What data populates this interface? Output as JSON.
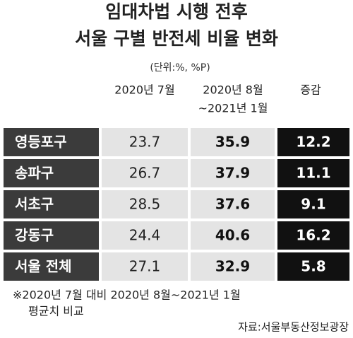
{
  "header": {
    "title": [
      "임대차법 시행 전후",
      "서울 구별 반전세 비율 변화"
    ],
    "unit": "(단위:%, %P)"
  },
  "table": {
    "columns": [
      [
        "2020년 7월"
      ],
      [
        "2020년 8월",
        "~2021년 1월"
      ],
      [
        "증감"
      ]
    ],
    "rows": [
      [
        "영등포구",
        "23.7",
        "35.9",
        "12.2"
      ],
      [
        "송파구",
        "26.7",
        "37.9",
        "11.1"
      ],
      [
        "서초구",
        "28.5",
        "37.6",
        "9.1"
      ],
      [
        "강동구",
        "24.4",
        "40.6",
        "16.2"
      ],
      [
        "서울 전체",
        "27.1",
        "32.9",
        "5.8"
      ]
    ]
  },
  "footnote": [
    "※2020년 7월 대비 2020년 8월~2021년 1월",
    "평균치 비교"
  ],
  "source": "자료:서울부동산정보광장"
}
